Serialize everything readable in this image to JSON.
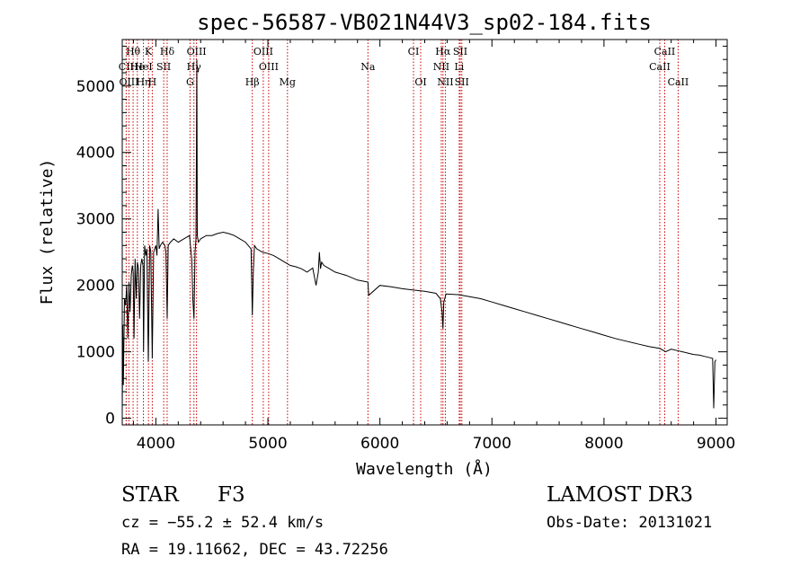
{
  "chart_data": {
    "type": "line",
    "title": "spec-56587-VB021N44V3_sp02-184.fits",
    "xlabel": "Wavelength (Å)",
    "ylabel": "Flux (relative)",
    "xlim": [
      3700,
      9100
    ],
    "ylim": [
      -100,
      5700
    ],
    "x_ticks": [
      4000,
      5000,
      6000,
      7000,
      8000,
      9000
    ],
    "y_ticks": [
      0,
      1000,
      2000,
      3000,
      4000,
      5000
    ],
    "series": [
      {
        "name": "flux",
        "x": [
          3700,
          3705,
          3710,
          3720,
          3730,
          3740,
          3750,
          3760,
          3770,
          3780,
          3790,
          3798,
          3805,
          3815,
          3825,
          3835,
          3845,
          3855,
          3865,
          3875,
          3885,
          3890,
          3900,
          3910,
          3920,
          3933,
          3945,
          3955,
          3968,
          3980,
          3990,
          4000,
          4010,
          4020,
          4030,
          4040,
          4060,
          4080,
          4090,
          4101,
          4110,
          4130,
          4160,
          4200,
          4250,
          4300,
          4320,
          4330,
          4340,
          4350,
          4358,
          4362,
          4366,
          4370,
          4375,
          4380,
          4400,
          4450,
          4500,
          4550,
          4600,
          4650,
          4700,
          4750,
          4800,
          4850,
          4861,
          4870,
          4880,
          4900,
          4950,
          5000,
          5050,
          5100,
          5150,
          5200,
          5250,
          5300,
          5350,
          5400,
          5430,
          5450,
          5460,
          5470,
          5480,
          5500,
          5550,
          5600,
          5700,
          5800,
          5893,
          5900,
          6000,
          6100,
          6200,
          6300,
          6400,
          6500,
          6540,
          6555,
          6563,
          6570,
          6590,
          6700,
          6800,
          6900,
          7000,
          7100,
          7200,
          7300,
          7400,
          7500,
          7600,
          7700,
          7800,
          7900,
          8000,
          8100,
          8200,
          8300,
          8400,
          8500,
          8550,
          8600,
          8650,
          8700,
          8750,
          8800,
          8850,
          8900,
          8950,
          8970,
          8980,
          8990,
          9000
        ],
        "y": [
          80,
          1400,
          500,
          1800,
          1700,
          2000,
          1200,
          2050,
          1600,
          2150,
          2300,
          2200,
          1200,
          2400,
          1800,
          2350,
          2250,
          1500,
          2300,
          2400,
          2300,
          1000,
          2600,
          2450,
          2550,
          850,
          2600,
          2500,
          900,
          2500,
          2550,
          2600,
          2450,
          3150,
          2550,
          2600,
          2650,
          2600,
          2500,
          1500,
          2600,
          2650,
          2700,
          2650,
          2700,
          2750,
          2400,
          1800,
          1500,
          2500,
          2700,
          3900,
          5400,
          2750,
          2700,
          2650,
          2700,
          2750,
          2750,
          2780,
          2800,
          2780,
          2750,
          2700,
          2650,
          2550,
          1550,
          2200,
          2600,
          2550,
          2500,
          2480,
          2450,
          2400,
          2350,
          2300,
          2280,
          2250,
          2200,
          2260,
          2000,
          2200,
          2500,
          2250,
          2350,
          2300,
          2250,
          2200,
          2150,
          2080,
          2050,
          1850,
          2000,
          1980,
          1950,
          1930,
          1910,
          1880,
          1800,
          1600,
          1350,
          1750,
          1870,
          1860,
          1830,
          1800,
          1750,
          1700,
          1650,
          1600,
          1550,
          1500,
          1450,
          1400,
          1350,
          1300,
          1250,
          1200,
          1160,
          1120,
          1080,
          1050,
          1000,
          1040,
          1020,
          1000,
          980,
          960,
          950,
          930,
          910,
          900,
          150,
          850,
          880
        ]
      }
    ],
    "line_markers": [
      {
        "label": "Hθ",
        "x": 3797,
        "row": 0
      },
      {
        "label": "CII",
        "x": 3735,
        "row": 1
      },
      {
        "label": "OIII",
        "x": 3760,
        "row": 2
      },
      {
        "label": "He",
        "x": 3835,
        "row": 1
      },
      {
        "label": "Hη",
        "x": 3889,
        "row": 2
      },
      {
        "label": "K",
        "x": 3934,
        "row": 0
      },
      {
        "label": "HeI",
        "x": 3889,
        "row": 1
      },
      {
        "label": "H",
        "x": 3968,
        "row": 2
      },
      {
        "label": "SII",
        "x": 4070,
        "row": 1
      },
      {
        "label": "Hδ",
        "x": 4101,
        "row": 0
      },
      {
        "label": "G",
        "x": 4305,
        "row": 2
      },
      {
        "label": "OIII",
        "x": 4363,
        "row": 0
      },
      {
        "label": "Hγ",
        "x": 4340,
        "row": 1
      },
      {
        "label": "OIII",
        "x": 4959,
        "row": 0
      },
      {
        "label": "OIII",
        "x": 5007,
        "row": 1
      },
      {
        "label": "Hβ",
        "x": 4861,
        "row": 2
      },
      {
        "label": "Mg",
        "x": 5175,
        "row": 2
      },
      {
        "label": "Na",
        "x": 5893,
        "row": 1
      },
      {
        "label": "CI",
        "x": 6300,
        "row": 0
      },
      {
        "label": "OI",
        "x": 6364,
        "row": 2
      },
      {
        "label": "Hα",
        "x": 6563,
        "row": 0
      },
      {
        "label": "SII",
        "x": 6717,
        "row": 0
      },
      {
        "label": "NII",
        "x": 6548,
        "row": 1
      },
      {
        "label": "Li",
        "x": 6708,
        "row": 1
      },
      {
        "label": "NII",
        "x": 6584,
        "row": 2
      },
      {
        "label": "SII",
        "x": 6731,
        "row": 2
      },
      {
        "label": "CaII",
        "x": 8498,
        "row": 1
      },
      {
        "label": "CaII",
        "x": 8542,
        "row": 0
      },
      {
        "label": "CaII",
        "x": 8662,
        "row": 2
      }
    ],
    "marker_lines": [
      3735,
      3760,
      3797,
      3835,
      3889,
      3934,
      3968,
      4070,
      4101,
      4305,
      4340,
      4363,
      4861,
      4959,
      5007,
      5175,
      5893,
      6300,
      6364,
      6548,
      6563,
      6584,
      6708,
      6717,
      6731,
      8498,
      8542,
      8662
    ]
  },
  "info": {
    "object_class": "STAR",
    "subclass": "F3",
    "survey": "LAMOST DR3",
    "redshift_text": "cz = −55.2 ± 52.4 km/s",
    "obs_date_text": "Obs-Date: 20131021",
    "coords_text": "RA =  19.11662, DEC =  43.72256"
  },
  "colors": {
    "spectrum": "#000000",
    "marker_line": "#cc0000",
    "axis": "#000000"
  }
}
